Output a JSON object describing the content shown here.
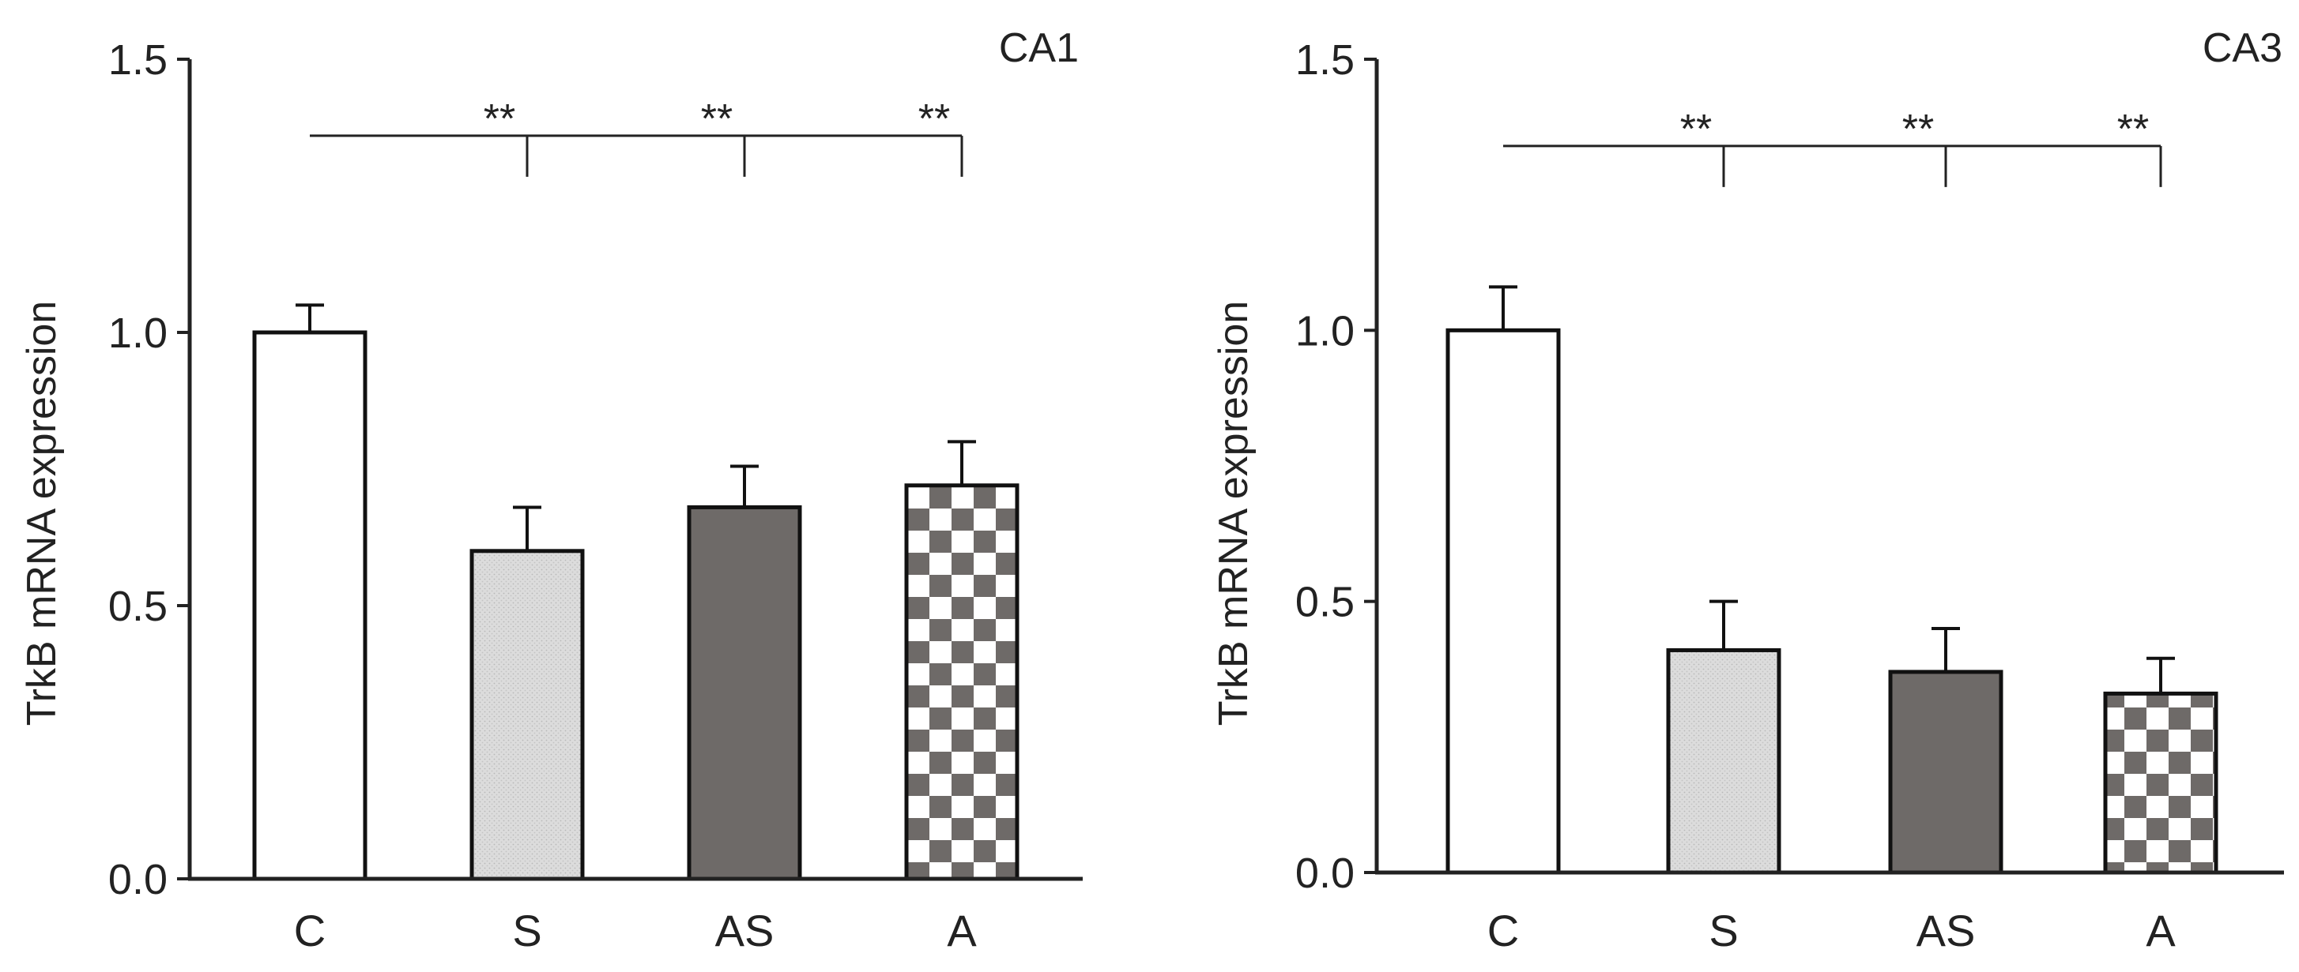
{
  "chart_data": [
    {
      "type": "bar",
      "title": "CA1",
      "xlabel": "",
      "ylabel": "TrkB mRNA  expression",
      "categories": [
        "C",
        "S",
        "AS",
        "A"
      ],
      "values": [
        1.0,
        0.6,
        0.68,
        0.72
      ],
      "errors": [
        0.05,
        0.08,
        0.075,
        0.08
      ],
      "bar_styles": [
        "white",
        "light-dotted",
        "dark-gray",
        "checkerboard"
      ],
      "ylim": [
        0,
        1.5
      ],
      "yticks": [
        0.0,
        0.5,
        1.0,
        1.5
      ],
      "ytick_labels": [
        "0.0",
        "0.5",
        "1.0",
        "1.5"
      ],
      "grid": false,
      "significance": {
        "reference": "C",
        "bracket_y": 1.36,
        "comparisons": [
          {
            "target": "S",
            "label": "**"
          },
          {
            "target": "AS",
            "label": "**"
          },
          {
            "target": "A",
            "label": "**"
          }
        ]
      }
    },
    {
      "type": "bar",
      "title": "CA3",
      "xlabel": "",
      "ylabel": "TrkB mRNA  expression",
      "categories": [
        "C",
        "S",
        "AS",
        "A"
      ],
      "values": [
        1.0,
        0.41,
        0.37,
        0.33
      ],
      "errors": [
        0.08,
        0.09,
        0.08,
        0.065
      ],
      "bar_styles": [
        "white",
        "light-dotted",
        "dark-gray",
        "checkerboard"
      ],
      "ylim": [
        0,
        1.5
      ],
      "yticks": [
        0.0,
        0.5,
        1.0,
        1.5
      ],
      "ytick_labels": [
        "0.0",
        "0.5",
        "1.0",
        "1.5"
      ],
      "grid": false,
      "significance": {
        "reference": "C",
        "bracket_y": 1.34,
        "comparisons": [
          {
            "target": "S",
            "label": "**"
          },
          {
            "target": "AS",
            "label": "**"
          },
          {
            "target": "A",
            "label": "**"
          }
        ]
      }
    }
  ],
  "colors": {
    "axis": "#222222",
    "bar_white": "#ffffff",
    "bar_light": "#dcdcdc",
    "bar_light_dot": "#b8b8b8",
    "bar_dark": "#6e6a68",
    "checker_a": "#6e6a68",
    "checker_b": "#ffffff",
    "outline": "#111111"
  }
}
